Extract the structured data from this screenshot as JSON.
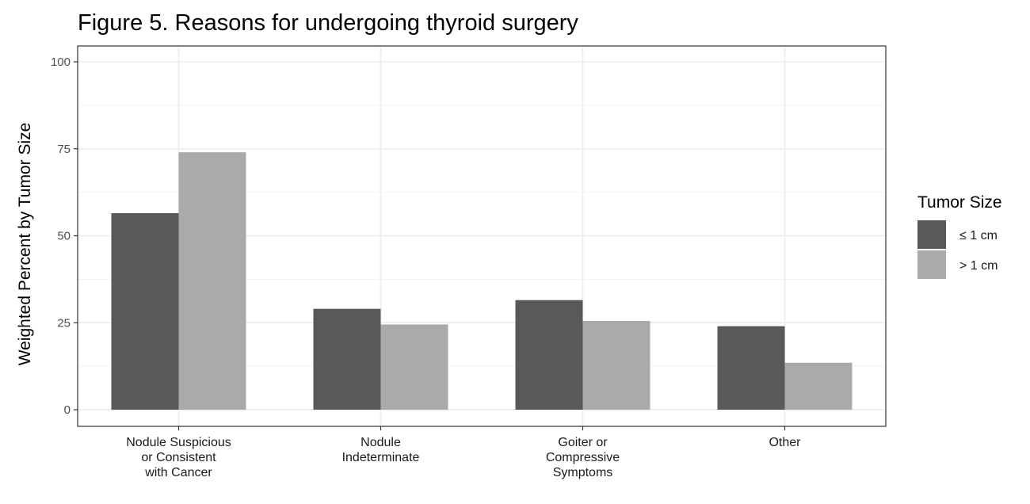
{
  "chart_data": {
    "type": "bar",
    "title": "Figure 5. Reasons for undergoing thyroid surgery",
    "xlabel": "",
    "ylabel": "Weighted Percent by Tumor Size",
    "ylim": [
      0,
      100
    ],
    "yticks": [
      0,
      25,
      50,
      75,
      100
    ],
    "grid": true,
    "legend_title": "Tumor Size",
    "legend_position": "right",
    "categories": [
      [
        "Nodule Suspicious",
        "or Consistent",
        "with Cancer"
      ],
      [
        "Nodule",
        "Indeterminate"
      ],
      [
        "Goiter or",
        "Compressive",
        "Symptoms"
      ],
      [
        "Other"
      ]
    ],
    "series": [
      {
        "name": "≤ 1 cm",
        "color": "#595959",
        "values": [
          56.5,
          29,
          31.5,
          24
        ]
      },
      {
        "name": "> 1 cm",
        "color": "#aaaaaa",
        "values": [
          74,
          24.5,
          25.5,
          13.5
        ]
      }
    ]
  }
}
